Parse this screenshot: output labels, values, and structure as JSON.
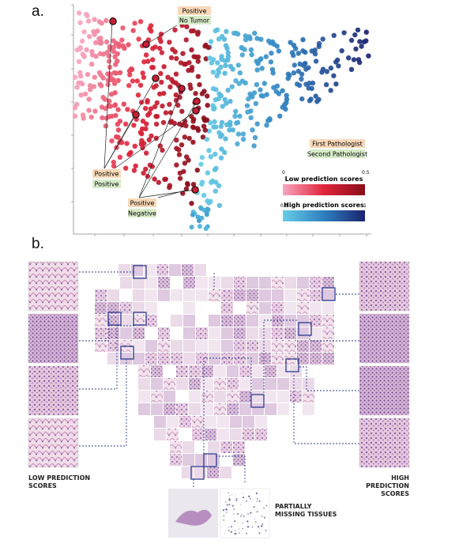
{
  "panel_a": {
    "label": "a.",
    "callouts": {
      "top": {
        "first": "Positive",
        "second": "No Tumor"
      },
      "left": {
        "first": "Positive",
        "second": "Positive"
      },
      "bottom": {
        "first": "Positive",
        "second": "Negative"
      }
    },
    "legend": {
      "first_pathologist": "First Pathologist",
      "second_pathologist": "Second Pathologist",
      "low": {
        "title": "Low prediction scores",
        "min": "0",
        "max": "0.5",
        "colors": [
          "#f7a6bf",
          "#e0243a",
          "#8a0e1c"
        ]
      },
      "high": {
        "title": "High prediction scores",
        "min": "0.5",
        "max": "1",
        "colors": [
          "#66cde6",
          "#2e7fc0",
          "#1b236e"
        ]
      }
    },
    "tag_colors": {
      "first": "#f9d8b8",
      "second": "#d7ebc9"
    }
  },
  "panel_b": {
    "label": "b.",
    "low_caption": [
      "LOW PREDICTION",
      "SCORES"
    ],
    "high_caption": [
      "HIGH PREDICTION",
      "SCORES"
    ],
    "missing_caption": [
      "PARTIALLY",
      "MISSING TISSUES"
    ]
  }
}
